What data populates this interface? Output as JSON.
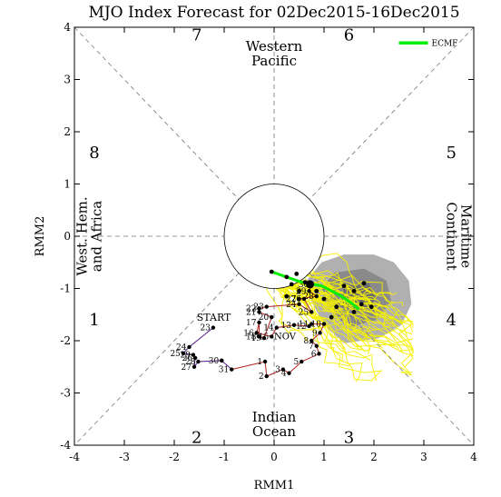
{
  "chart_data": {
    "type": "scatter",
    "title": "MJO Index Forecast for 02Dec2015-16Dec2015",
    "xlabel": "RMM1",
    "ylabel": "RMM2",
    "xlim": [
      -4,
      4
    ],
    "ylim": [
      -4,
      4
    ],
    "x_ticks": [
      "-4",
      "-3",
      "-2",
      "-1",
      "0",
      "1",
      "2",
      "3",
      "4"
    ],
    "y_ticks": [
      "-4",
      "-3",
      "-2",
      "-1",
      "0",
      "1",
      "2",
      "3",
      "4"
    ],
    "phases": [
      {
        "label": "1",
        "x": -3.6,
        "y": -1.6
      },
      {
        "label": "2",
        "x": -1.55,
        "y": -3.85
      },
      {
        "label": "3",
        "x": 1.5,
        "y": -3.85
      },
      {
        "label": "4",
        "x": 3.55,
        "y": -1.6
      },
      {
        "label": "5",
        "x": 3.55,
        "y": 1.6
      },
      {
        "label": "6",
        "x": 1.5,
        "y": 3.85
      },
      {
        "label": "7",
        "x": -1.55,
        "y": 3.85
      },
      {
        "label": "8",
        "x": -3.6,
        "y": 1.6
      }
    ],
    "regions": [
      {
        "lines": [
          "Western",
          "Pacific"
        ],
        "x": 0,
        "y": 3.5,
        "rotate": 0
      },
      {
        "lines": [
          "Indian",
          "Ocean"
        ],
        "x": 0,
        "y": -3.6,
        "rotate": 0
      },
      {
        "lines": [
          "West. Hem.",
          "and Africa"
        ],
        "x": -3.7,
        "y": 0,
        "rotate": -90
      },
      {
        "lines": [
          "Maritime",
          "Continent"
        ],
        "x": 3.7,
        "y": 0,
        "rotate": 90
      }
    ],
    "legend": {
      "label": "ECMF",
      "color": "#00ee00",
      "position": "top-right"
    },
    "start_label": {
      "text": "START",
      "x": -1.55,
      "y": -1.62,
      "color": "#551a8b"
    },
    "month_label": {
      "text": "NOV",
      "x": 0.0,
      "y": -1.9,
      "color": "#b22222"
    },
    "observed": {
      "series": [
        {
          "name": "",
          "color": "#551a8b",
          "points": [
            {
              "day": "23",
              "x": -1.22,
              "y": -1.75
            },
            {
              "day": "24",
              "x": -1.7,
              "y": -2.12
            },
            {
              "day": "25",
              "x": -1.82,
              "y": -2.24
            },
            {
              "day": "29",
              "x": -1.62,
              "y": -2.27
            },
            {
              "day": "26",
              "x": -1.58,
              "y": -2.33
            },
            {
              "day": "27",
              "x": -1.6,
              "y": -2.5
            },
            {
              "day": "28",
              "x": -1.52,
              "y": -2.4
            },
            {
              "day": "30",
              "x": -1.05,
              "y": -2.38
            },
            {
              "day": "",
              "x": -1.05,
              "y": -2.38
            }
          ]
        },
        {
          "name": "",
          "color": "#b22222",
          "points": [
            {
              "day": "31",
              "x": -0.85,
              "y": -2.55
            },
            {
              "day": "1",
              "x": -0.18,
              "y": -2.4
            },
            {
              "day": "2",
              "x": -0.15,
              "y": -2.68
            },
            {
              "day": "3",
              "x": 0.18,
              "y": -2.55
            },
            {
              "day": "4",
              "x": 0.3,
              "y": -2.62
            },
            {
              "day": "5",
              "x": 0.55,
              "y": -2.4
            },
            {
              "day": "6",
              "x": 0.9,
              "y": -2.25
            },
            {
              "day": "7",
              "x": 0.85,
              "y": -2.1
            },
            {
              "day": "8",
              "x": 0.75,
              "y": -2.0
            },
            {
              "day": "9",
              "x": 0.92,
              "y": -1.85
            },
            {
              "day": "10",
              "x": 1.0,
              "y": -1.68
            },
            {
              "day": "11",
              "x": 0.75,
              "y": -1.68
            },
            {
              "day": "12",
              "x": 0.7,
              "y": -1.72
            },
            {
              "day": "13",
              "x": 0.4,
              "y": -1.7
            },
            {
              "day": "14",
              "x": 0.05,
              "y": -1.75
            },
            {
              "day": "15",
              "x": -0.05,
              "y": -1.92
            },
            {
              "day": "16",
              "x": -0.35,
              "y": -1.85
            },
            {
              "day": "17",
              "x": -0.3,
              "y": -1.65
            },
            {
              "day": "18",
              "x": -0.3,
              "y": -1.92
            },
            {
              "day": "19",
              "x": -0.2,
              "y": -1.95
            },
            {
              "day": "20",
              "x": -0.05,
              "y": -1.55
            },
            {
              "day": "21",
              "x": -0.3,
              "y": -1.45
            },
            {
              "day": "22",
              "x": -0.3,
              "y": -1.38
            },
            {
              "day": "23",
              "x": -0.15,
              "y": -1.35
            },
            {
              "day": "24",
              "x": 0.5,
              "y": -1.3
            },
            {
              "day": "25",
              "x": 0.75,
              "y": -1.45
            },
            {
              "day": "26",
              "x": 0.6,
              "y": -1.2
            },
            {
              "day": "27",
              "x": 0.5,
              "y": -1.2
            },
            {
              "day": "28",
              "x": 0.85,
              "y": -1.15
            },
            {
              "day": "29",
              "x": 0.7,
              "y": -1.05
            },
            {
              "day": "30",
              "x": 0.75,
              "y": -0.92
            }
          ]
        }
      ]
    },
    "ecmf_mean": [
      {
        "x": -0.05,
        "y": -0.68
      },
      {
        "x": 0.25,
        "y": -0.78
      },
      {
        "x": 0.55,
        "y": -0.88
      },
      {
        "x": 0.95,
        "y": -0.95
      },
      {
        "x": 1.3,
        "y": -1.12
      },
      {
        "x": 1.55,
        "y": -1.28
      },
      {
        "x": 1.7,
        "y": -1.4
      }
    ],
    "ecmf_dots": [
      {
        "x": -0.05,
        "y": -0.68
      },
      {
        "x": 0.25,
        "y": -0.78
      },
      {
        "x": 0.45,
        "y": -0.72
      },
      {
        "x": 0.62,
        "y": -0.88
      },
      {
        "x": 0.72,
        "y": -0.92
      },
      {
        "x": 0.25,
        "y": -1.15
      },
      {
        "x": 0.5,
        "y": -1.05
      },
      {
        "x": 1.0,
        "y": -1.2
      },
      {
        "x": 1.25,
        "y": -1.35
      },
      {
        "x": 1.6,
        "y": -1.45
      },
      {
        "x": 1.75,
        "y": -1.3
      },
      {
        "x": 1.6,
        "y": -1.05
      },
      {
        "x": 1.4,
        "y": -0.95
      },
      {
        "x": 1.15,
        "y": -1.55
      },
      {
        "x": 1.8,
        "y": -0.9
      },
      {
        "x": 0.85,
        "y": -1.05
      },
      {
        "x": 0.35,
        "y": -0.92
      },
      {
        "x": 1.95,
        "y": -1.35
      }
    ],
    "spread_outer": [
      [
        0.95,
        -0.5
      ],
      [
        1.4,
        -0.35
      ],
      [
        2.0,
        -0.35
      ],
      [
        2.4,
        -0.5
      ],
      [
        2.7,
        -0.85
      ],
      [
        2.75,
        -1.3
      ],
      [
        2.55,
        -1.7
      ],
      [
        2.1,
        -1.95
      ],
      [
        1.4,
        -2.05
      ],
      [
        1.0,
        -1.7
      ],
      [
        0.75,
        -1.25
      ],
      [
        0.65,
        -0.85
      ]
    ],
    "spread_inner": [
      [
        1.2,
        -0.7
      ],
      [
        1.8,
        -0.62
      ],
      [
        2.25,
        -0.85
      ],
      [
        2.35,
        -1.25
      ],
      [
        2.05,
        -1.6
      ],
      [
        1.5,
        -1.75
      ],
      [
        1.1,
        -1.4
      ],
      [
        0.95,
        -1.0
      ]
    ],
    "spread_core": [
      [
        1.4,
        -0.95
      ],
      [
        1.9,
        -0.9
      ],
      [
        2.05,
        -1.2
      ],
      [
        1.75,
        -1.45
      ],
      [
        1.35,
        -1.35
      ]
    ]
  }
}
